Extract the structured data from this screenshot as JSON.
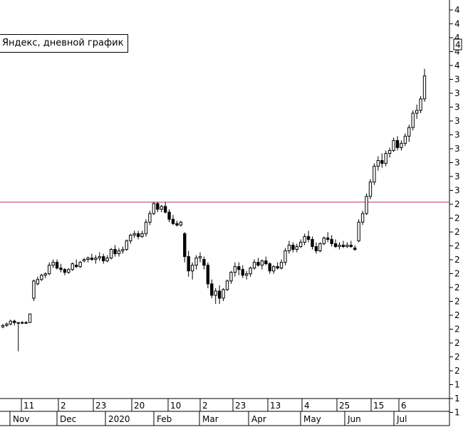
{
  "chart_data": {
    "type": "candlestick",
    "title": "",
    "legend_label": "Яндекс, дневной график",
    "colors": {
      "candle_up": "#ffffff",
      "candle_down": "#000000",
      "outline": "#000000",
      "reference_line": "#c8286e",
      "axis": "#000000",
      "grid": "none"
    },
    "y_axis": {
      "position": "right",
      "tick_labels": [
        "4",
        "4",
        "4",
        "4",
        "4",
        "3",
        "3",
        "3",
        "3",
        "3",
        "3",
        "3",
        "3",
        "3",
        "2",
        "2",
        "2",
        "2",
        "2",
        "2",
        "2",
        "2",
        "2",
        "2",
        "2",
        "2",
        "2",
        "1",
        "1",
        "1"
      ]
    },
    "x_axis": {
      "day_labels": [
        "11",
        "2",
        "23",
        "20",
        "10",
        "2",
        "23",
        "13",
        "4",
        "25",
        "15",
        "6"
      ],
      "month_labels": [
        "Nov",
        "Dec",
        "2020",
        "Feb",
        "Mar",
        "Apr",
        "May",
        "Jun",
        "Jul"
      ]
    },
    "reference_line": {
      "y": 3.02
    },
    "price_marker": {
      "label": "4"
    },
    "ohlc": [
      [
        2.15,
        2.17,
        2.14,
        2.16
      ],
      [
        2.16,
        2.18,
        2.15,
        2.17
      ],
      [
        2.17,
        2.2,
        2.16,
        2.19
      ],
      [
        2.19,
        2.2,
        2.16,
        2.18
      ],
      [
        2.18,
        2.18,
        1.98,
        2.18
      ],
      [
        2.18,
        2.19,
        2.17,
        2.18
      ],
      [
        2.18,
        2.19,
        2.17,
        2.18
      ],
      [
        2.18,
        2.24,
        2.18,
        2.24
      ],
      [
        2.35,
        2.48,
        2.33,
        2.47
      ],
      [
        2.45,
        2.5,
        2.44,
        2.48
      ],
      [
        2.48,
        2.52,
        2.47,
        2.51
      ],
      [
        2.51,
        2.53,
        2.49,
        2.52
      ],
      [
        2.52,
        2.6,
        2.51,
        2.58
      ],
      [
        2.58,
        2.62,
        2.56,
        2.6
      ],
      [
        2.6,
        2.62,
        2.55,
        2.56
      ],
      [
        2.56,
        2.59,
        2.53,
        2.55
      ],
      [
        2.55,
        2.56,
        2.51,
        2.53
      ],
      [
        2.53,
        2.56,
        2.52,
        2.55
      ],
      [
        2.55,
        2.6,
        2.54,
        2.59
      ],
      [
        2.58,
        2.62,
        2.56,
        2.57
      ],
      [
        2.57,
        2.61,
        2.56,
        2.6
      ],
      [
        2.61,
        2.63,
        2.6,
        2.62
      ],
      [
        2.62,
        2.64,
        2.6,
        2.63
      ],
      [
        2.63,
        2.66,
        2.61,
        2.62
      ],
      [
        2.62,
        2.65,
        2.59,
        2.63
      ],
      [
        2.63,
        2.67,
        2.61,
        2.64
      ],
      [
        2.64,
        2.66,
        2.59,
        2.61
      ],
      [
        2.61,
        2.65,
        2.6,
        2.63
      ],
      [
        2.63,
        2.7,
        2.62,
        2.69
      ],
      [
        2.69,
        2.72,
        2.64,
        2.66
      ],
      [
        2.66,
        2.7,
        2.64,
        2.68
      ],
      [
        2.68,
        2.71,
        2.66,
        2.69
      ],
      [
        2.69,
        2.76,
        2.68,
        2.75
      ],
      [
        2.75,
        2.8,
        2.73,
        2.79
      ],
      [
        2.79,
        2.82,
        2.77,
        2.8
      ],
      [
        2.8,
        2.82,
        2.76,
        2.78
      ],
      [
        2.78,
        2.82,
        2.77,
        2.8
      ],
      [
        2.8,
        2.9,
        2.78,
        2.88
      ],
      [
        2.88,
        2.96,
        2.86,
        2.94
      ],
      [
        2.94,
        3.02,
        2.93,
        3.01
      ],
      [
        3.01,
        3.02,
        2.95,
        2.97
      ],
      [
        2.97,
        3.0,
        2.95,
        2.99
      ],
      [
        2.99,
        3.02,
        2.94,
        2.95
      ],
      [
        2.95,
        2.97,
        2.88,
        2.9
      ],
      [
        2.9,
        2.93,
        2.86,
        2.87
      ],
      [
        2.87,
        2.89,
        2.85,
        2.86
      ],
      [
        2.86,
        2.89,
        2.85,
        2.88
      ],
      [
        2.8,
        2.81,
        2.6,
        2.64
      ],
      [
        2.64,
        2.68,
        2.5,
        2.54
      ],
      [
        2.54,
        2.6,
        2.48,
        2.58
      ],
      [
        2.58,
        2.65,
        2.55,
        2.63
      ],
      [
        2.63,
        2.67,
        2.6,
        2.64
      ],
      [
        2.62,
        2.64,
        2.55,
        2.58
      ],
      [
        2.58,
        2.6,
        2.42,
        2.45
      ],
      [
        2.45,
        2.48,
        2.35,
        2.37
      ],
      [
        2.37,
        2.42,
        2.31,
        2.4
      ],
      [
        2.4,
        2.44,
        2.31,
        2.35
      ],
      [
        2.35,
        2.42,
        2.33,
        2.41
      ],
      [
        2.41,
        2.48,
        2.4,
        2.47
      ],
      [
        2.47,
        2.54,
        2.45,
        2.53
      ],
      [
        2.53,
        2.6,
        2.5,
        2.57
      ],
      [
        2.57,
        2.6,
        2.51,
        2.55
      ],
      [
        2.55,
        2.58,
        2.49,
        2.51
      ],
      [
        2.51,
        2.54,
        2.48,
        2.52
      ],
      [
        2.52,
        2.57,
        2.5,
        2.56
      ],
      [
        2.56,
        2.62,
        2.55,
        2.6
      ],
      [
        2.6,
        2.63,
        2.57,
        2.58
      ],
      [
        2.58,
        2.62,
        2.55,
        2.61
      ],
      [
        2.61,
        2.64,
        2.58,
        2.59
      ],
      [
        2.59,
        2.6,
        2.52,
        2.54
      ],
      [
        2.54,
        2.58,
        2.52,
        2.57
      ],
      [
        2.57,
        2.6,
        2.55,
        2.56
      ],
      [
        2.56,
        2.62,
        2.55,
        2.6
      ],
      [
        2.6,
        2.7,
        2.58,
        2.68
      ],
      [
        2.68,
        2.75,
        2.66,
        2.72
      ],
      [
        2.72,
        2.74,
        2.67,
        2.69
      ],
      [
        2.69,
        2.73,
        2.67,
        2.71
      ],
      [
        2.71,
        2.76,
        2.7,
        2.74
      ],
      [
        2.74,
        2.8,
        2.72,
        2.78
      ],
      [
        2.78,
        2.82,
        2.74,
        2.76
      ],
      [
        2.76,
        2.78,
        2.69,
        2.71
      ],
      [
        2.71,
        2.74,
        2.66,
        2.68
      ],
      [
        2.68,
        2.74,
        2.67,
        2.73
      ],
      [
        2.73,
        2.78,
        2.72,
        2.77
      ],
      [
        2.77,
        2.81,
        2.74,
        2.76
      ],
      [
        2.76,
        2.79,
        2.71,
        2.73
      ],
      [
        2.73,
        2.76,
        2.7,
        2.71
      ],
      [
        2.71,
        2.74,
        2.69,
        2.72
      ],
      [
        2.72,
        2.75,
        2.7,
        2.71
      ],
      [
        2.71,
        2.74,
        2.7,
        2.72
      ],
      [
        2.72,
        2.75,
        2.7,
        2.71
      ],
      [
        2.7,
        2.72,
        2.68,
        2.69
      ],
      [
        2.75,
        2.9,
        2.74,
        2.88
      ],
      [
        2.88,
        2.96,
        2.86,
        2.94
      ],
      [
        2.94,
        3.08,
        2.93,
        3.06
      ],
      [
        3.06,
        3.18,
        3.04,
        3.16
      ],
      [
        3.16,
        3.29,
        3.14,
        3.27
      ],
      [
        3.27,
        3.34,
        3.24,
        3.31
      ],
      [
        3.31,
        3.36,
        3.26,
        3.29
      ],
      [
        3.29,
        3.38,
        3.27,
        3.36
      ],
      [
        3.36,
        3.4,
        3.33,
        3.38
      ],
      [
        3.38,
        3.47,
        3.37,
        3.45
      ],
      [
        3.45,
        3.48,
        3.38,
        3.4
      ],
      [
        3.4,
        3.45,
        3.38,
        3.43
      ],
      [
        3.43,
        3.5,
        3.41,
        3.48
      ],
      [
        3.48,
        3.56,
        3.44,
        3.54
      ],
      [
        3.54,
        3.66,
        3.52,
        3.64
      ],
      [
        3.64,
        3.7,
        3.6,
        3.66
      ],
      [
        3.66,
        3.76,
        3.64,
        3.74
      ],
      [
        3.74,
        3.95,
        3.72,
        3.9
      ]
    ]
  }
}
